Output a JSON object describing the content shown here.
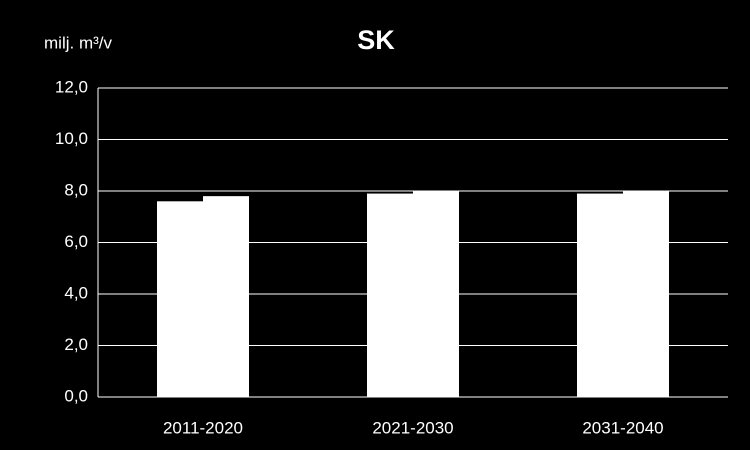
{
  "chart_data": {
    "type": "bar",
    "title": "SK",
    "y_label": "milj. m³/v",
    "categories": [
      "2011-2020",
      "2021-2030",
      "2031-2040"
    ],
    "series": [
      {
        "color": "#ffffff",
        "values": [
          7.6,
          7.9,
          7.9
        ]
      },
      {
        "color": "#ffffff",
        "values": [
          7.8,
          8.0,
          8.0
        ]
      }
    ],
    "ylim": [
      0,
      12
    ],
    "yticks": [
      {
        "value": 0,
        "label": "0,0"
      },
      {
        "value": 2,
        "label": "2,0"
      },
      {
        "value": 4,
        "label": "4,0"
      },
      {
        "value": 6,
        "label": "6,0"
      },
      {
        "value": 8,
        "label": "8,0"
      },
      {
        "value": 10,
        "label": "10,0"
      },
      {
        "value": 12,
        "label": "12,0"
      }
    ],
    "grid": true
  }
}
